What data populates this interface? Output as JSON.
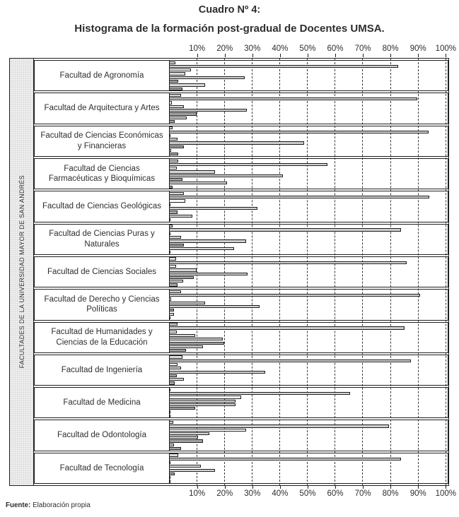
{
  "page": {
    "title": "Cuadro Nº 4:",
    "subtitle": "Histograma de la formación post-gradual de Docentes UMSA.",
    "source_label": "Fuente:",
    "source_text": " Elaboración propia"
  },
  "chart_data": {
    "type": "bar",
    "orientation": "horizontal",
    "title": "Cuadro Nº 4:",
    "subtitle": "Histograma de la formación post-gradual de Docentes UMSA.",
    "ylabel": "FACULTADES DE LA UNIVERSIDAD MAYOR DE SAN ANDRÉS",
    "xlabel": "",
    "xlim": [
      0,
      100
    ],
    "grid": "dashed-vertical",
    "legend": "none",
    "x_tick_labels": [
      "10%",
      "20%",
      "30%",
      "40%",
      "50%",
      "60%",
      "70%",
      "80%",
      "90%",
      "100%"
    ],
    "bar_styles": [
      "light",
      "dotted",
      "white",
      "light",
      "dotted",
      "dark",
      "light",
      "dark"
    ],
    "colors": {
      "light": "#dcdcdc",
      "dotted": "#c3c3c3",
      "white": "#ffffff",
      "dark": "#9b9b9b",
      "border": "#1f1f1f"
    },
    "series": [
      {
        "name": "Facultad de Agronomía",
        "values": [
          2.4,
          83,
          8,
          6,
          27.4,
          3.5,
          13.2,
          5
        ]
      },
      {
        "name": "Facultad de Arquitectura y Artes",
        "values": [
          4.6,
          90,
          1.2,
          5.5,
          28.3,
          10.2,
          6.6,
          2.3
        ]
      },
      {
        "name": "Facultad de Ciencias Económicas y Financieras",
        "values": [
          1.5,
          94,
          0.5,
          3.2,
          49,
          5.5,
          0.8,
          3.4
        ]
      },
      {
        "name": "Facultad de Ciencias Farmacéuticas y Bioquímicas",
        "values": [
          3.4,
          57.5,
          2.9,
          16.8,
          41.3,
          5,
          21,
          1.5
        ]
      },
      {
        "name": "Facultad de Ciencias Geológicas",
        "values": [
          5.6,
          94.4,
          5.9,
          0.5,
          32.2,
          3.2,
          8.5,
          0.5
        ]
      },
      {
        "name": "Facultad de Ciencias Puras y Naturales",
        "values": [
          1.5,
          84,
          0.6,
          4.4,
          27.9,
          5.5,
          23.6,
          0.6
        ]
      },
      {
        "name": "Facultad de Ciencias Sociales",
        "values": [
          2.7,
          86,
          2.7,
          10.2,
          28.5,
          9.1,
          5.2,
          3.2
        ]
      },
      {
        "name": "Facultad de Derecho y Ciencias Políticas",
        "values": [
          4.6,
          91,
          0.8,
          13.3,
          33,
          1.8,
          1.9,
          0.5
        ]
      },
      {
        "name": "Facultad de Humanidades y Ciencias de la Educación",
        "values": [
          3.2,
          85.3,
          2.9,
          9.5,
          19.6,
          20,
          12.3,
          6.3
        ]
      },
      {
        "name": "Facultad de Ingeniería",
        "values": [
          5,
          87.6,
          3.2,
          4.6,
          34.9,
          2.9,
          5.5,
          2.3
        ]
      },
      {
        "name": "Facultad de Medicina",
        "values": [
          0.5,
          65.6,
          26.2,
          24.2,
          24.3,
          9.7,
          0.5,
          0.5
        ]
      },
      {
        "name": "Facultad de Odontología",
        "values": [
          1.6,
          79.7,
          27.9,
          14.6,
          10.5,
          12.4,
          1.9,
          4.4
        ]
      },
      {
        "name": "Facultad de Tecnología",
        "values": [
          3.5,
          84,
          0.6,
          11.7,
          16.8,
          2.1,
          0.6,
          0.6
        ]
      }
    ]
  }
}
